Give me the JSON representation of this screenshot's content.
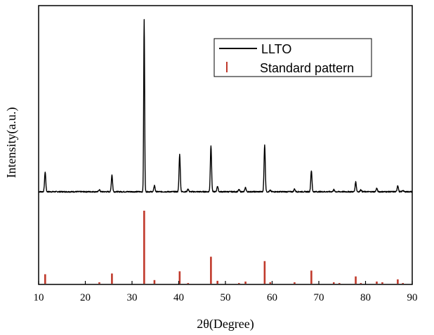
{
  "chart_data": {
    "type": "line",
    "xlabel": "2θ(Degree)",
    "ylabel": "Intensity(a.u.)",
    "xlim": [
      10,
      90
    ],
    "xticks": [
      10,
      20,
      30,
      40,
      50,
      60,
      70,
      80,
      90
    ],
    "grid": false,
    "legend_position": "top-right",
    "series": [
      {
        "name": "LLTO",
        "type": "line",
        "color": "#000000",
        "peaks": [
          {
            "x": 11.4,
            "y": 28
          },
          {
            "x": 23.0,
            "y": 3
          },
          {
            "x": 25.7,
            "y": 24
          },
          {
            "x": 32.6,
            "y": 245
          },
          {
            "x": 34.8,
            "y": 9
          },
          {
            "x": 40.2,
            "y": 53
          },
          {
            "x": 42.0,
            "y": 4
          },
          {
            "x": 46.9,
            "y": 66
          },
          {
            "x": 48.3,
            "y": 8
          },
          {
            "x": 52.9,
            "y": 3
          },
          {
            "x": 54.3,
            "y": 6
          },
          {
            "x": 58.4,
            "y": 67
          },
          {
            "x": 59.6,
            "y": 2
          },
          {
            "x": 64.8,
            "y": 4
          },
          {
            "x": 68.4,
            "y": 30
          },
          {
            "x": 73.2,
            "y": 3
          },
          {
            "x": 77.9,
            "y": 14
          },
          {
            "x": 79.0,
            "y": 3
          },
          {
            "x": 82.4,
            "y": 5
          },
          {
            "x": 86.9,
            "y": 9
          },
          {
            "x": 88.0,
            "y": 2
          }
        ]
      },
      {
        "name": "Standard pattern",
        "type": "stick",
        "color": "#c0392b",
        "sticks": [
          {
            "x": 11.4,
            "y": 13
          },
          {
            "x": 23.0,
            "y": 2
          },
          {
            "x": 25.7,
            "y": 14
          },
          {
            "x": 32.6,
            "y": 100
          },
          {
            "x": 34.8,
            "y": 5
          },
          {
            "x": 40.2,
            "y": 17
          },
          {
            "x": 42.0,
            "y": 1
          },
          {
            "x": 46.9,
            "y": 37
          },
          {
            "x": 48.3,
            "y": 4
          },
          {
            "x": 52.9,
            "y": 1
          },
          {
            "x": 54.3,
            "y": 3
          },
          {
            "x": 58.4,
            "y": 31
          },
          {
            "x": 59.6,
            "y": 2
          },
          {
            "x": 64.8,
            "y": 2
          },
          {
            "x": 68.4,
            "y": 18
          },
          {
            "x": 73.2,
            "y": 2
          },
          {
            "x": 74.4,
            "y": 1
          },
          {
            "x": 77.9,
            "y": 10
          },
          {
            "x": 79.0,
            "y": 1
          },
          {
            "x": 82.4,
            "y": 3
          },
          {
            "x": 83.6,
            "y": 2
          },
          {
            "x": 86.9,
            "y": 6
          },
          {
            "x": 88.0,
            "y": 1
          }
        ]
      }
    ]
  },
  "legend": {
    "items": [
      {
        "label": "LLTO",
        "color": "#000000"
      },
      {
        "label": "Standard pattern",
        "color": "#c0392b"
      }
    ]
  }
}
